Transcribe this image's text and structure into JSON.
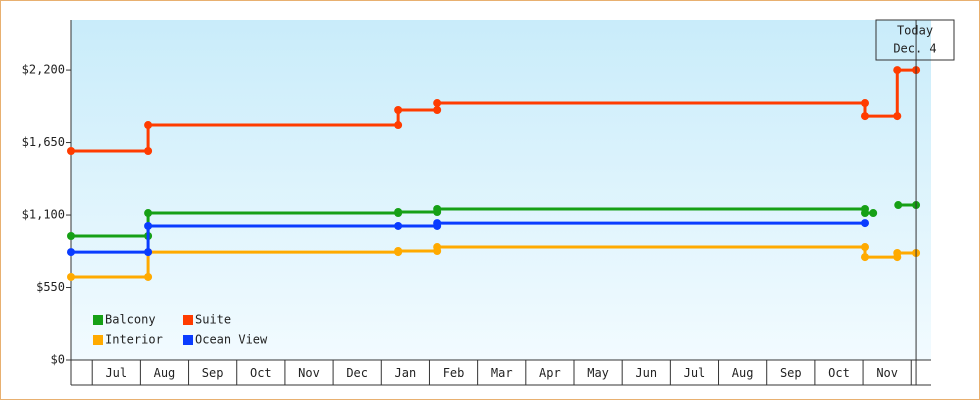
{
  "chart_data": {
    "type": "step-line",
    "categories": [
      "Jul",
      "Aug",
      "Sep",
      "Oct",
      "Nov",
      "Dec",
      "Jan",
      "Feb",
      "Mar",
      "Apr",
      "May",
      "Jun",
      "Jul",
      "Aug",
      "Sep",
      "Oct",
      "Nov"
    ],
    "xlim": [
      -0.44,
      17.41
    ],
    "xticks": [
      0,
      1,
      2,
      3,
      4,
      5,
      6,
      7,
      8,
      9,
      10,
      11,
      12,
      13,
      14,
      15,
      16,
      17
    ],
    "ylim": [
      0,
      2580
    ],
    "yticks": [
      {
        "value": 0,
        "label": "$0"
      },
      {
        "value": 550,
        "label": "$550"
      },
      {
        "value": 1100,
        "label": "$1,100"
      },
      {
        "value": 1650,
        "label": "$1,650"
      },
      {
        "value": 2200,
        "label": "$2,200"
      }
    ],
    "series": [
      {
        "name": "Balcony",
        "color": "#16a016",
        "x": [
          -0.44,
          1.16,
          1.16,
          6.35,
          6.35,
          7.16,
          7.16,
          16.04,
          16.04,
          16.21,
          null,
          16.73,
          17.1
        ],
        "values": [
          941,
          941,
          1115,
          1115,
          1123,
          1123,
          1146,
          1146,
          1115,
          1115,
          null,
          1176,
          1176
        ]
      },
      {
        "name": "Suite",
        "color": "#ff3c00",
        "x": [
          -0.44,
          1.16,
          1.16,
          6.35,
          6.35,
          7.16,
          7.16,
          16.04,
          16.04,
          16.71,
          16.71,
          17.1
        ],
        "values": [
          1586,
          1586,
          1783,
          1783,
          1897,
          1897,
          1950,
          1950,
          1851,
          1851,
          2200,
          2200
        ]
      },
      {
        "name": "Interior",
        "color": "#ffaa00",
        "x": [
          -0.44,
          1.16,
          1.16,
          6.35,
          6.35,
          7.16,
          7.16,
          16.04,
          16.04,
          16.71,
          16.71,
          17.1
        ],
        "values": [
          630,
          630,
          819,
          819,
          827,
          827,
          857,
          857,
          781,
          781,
          812,
          812
        ]
      },
      {
        "name": "Ocean View",
        "color": "#0a3cff",
        "x": [
          -0.44,
          1.16,
          1.16,
          6.35,
          7.16,
          7.16,
          16.04
        ],
        "values": [
          819,
          819,
          1017,
          1017,
          1017,
          1039,
          1039
        ]
      }
    ],
    "today": {
      "label": [
        "Today",
        "Dec. 4"
      ],
      "x": 17.1
    }
  }
}
